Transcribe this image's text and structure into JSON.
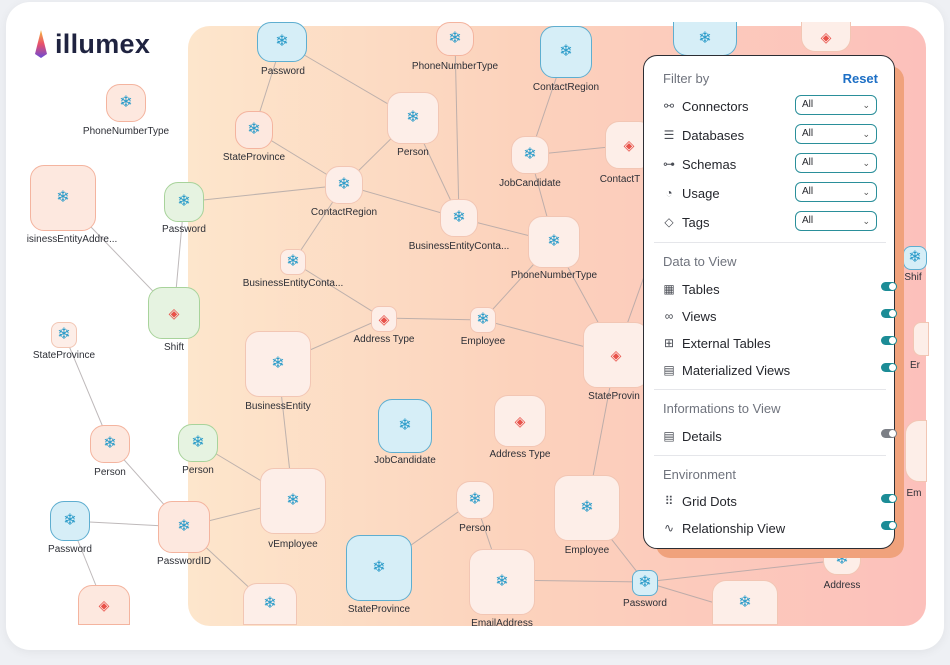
{
  "brand": {
    "name": "illumex"
  },
  "graph": {
    "nodes": [
      {
        "label": "Password"
      },
      {
        "label": "PhoneNumberType"
      },
      {
        "label": "ContactRegion"
      },
      {
        "label": "PhoneNumberType"
      },
      {
        "label": "StateProvince"
      },
      {
        "label": "Person"
      },
      {
        "label": "JobCandidate"
      },
      {
        "label": "ContactT"
      },
      {
        "label": "isinessEntityAddre..."
      },
      {
        "label": "Password"
      },
      {
        "label": "ContactRegion"
      },
      {
        "label": "BusinessEntityConta..."
      },
      {
        "label": "PhoneNumberType"
      },
      {
        "label": "BusinessEntityConta..."
      },
      {
        "label": "Shift"
      },
      {
        "label": "StateProvince"
      },
      {
        "label": "Address Type"
      },
      {
        "label": "Employee"
      },
      {
        "label": "BusinessEntity"
      },
      {
        "label": "StateProvin"
      },
      {
        "label": "JobCandidate"
      },
      {
        "label": "Address Type"
      },
      {
        "label": "Person"
      },
      {
        "label": "Person"
      },
      {
        "label": "vEmployee"
      },
      {
        "label": "Person"
      },
      {
        "label": "Employee"
      },
      {
        "label": "Password"
      },
      {
        "label": "PasswordID"
      },
      {
        "label": "StateProvince"
      },
      {
        "label": "EmailAddress"
      },
      {
        "label": "Password"
      },
      {
        "label": "Address"
      },
      {
        "label": "Shif"
      },
      {
        "label": "Er"
      },
      {
        "label": "Em"
      }
    ]
  },
  "filter": {
    "title": "Filter by",
    "reset": "Reset",
    "rows": [
      {
        "label": "Connectors",
        "icon": "connectors-icon",
        "value": "All"
      },
      {
        "label": "Databases",
        "icon": "database-icon",
        "value": "All"
      },
      {
        "label": "Schemas",
        "icon": "schema-icon",
        "value": "All"
      },
      {
        "label": "Usage",
        "icon": "gauge-icon",
        "value": "All"
      },
      {
        "label": "Tags",
        "icon": "tag-icon",
        "value": "All"
      }
    ]
  },
  "data_to_view": {
    "title": "Data to View",
    "items": [
      {
        "label": "Tables",
        "icon": "table-icon",
        "on": true
      },
      {
        "label": "Views",
        "icon": "glasses-icon",
        "on": true
      },
      {
        "label": "External Tables",
        "icon": "external-table-icon",
        "on": true
      },
      {
        "label": "Materialized Views",
        "icon": "materialized-view-icon",
        "on": true
      }
    ]
  },
  "informations": {
    "title": "Informations to View",
    "items": [
      {
        "label": "Details",
        "icon": "details-icon",
        "on": false
      }
    ]
  },
  "environment": {
    "title": "Environment",
    "items": [
      {
        "label": "Grid Dots",
        "icon": "grid-dots-icon",
        "on": true
      },
      {
        "label": "Relationship View",
        "icon": "relationship-icon",
        "on": true
      }
    ]
  },
  "colors": {
    "accent": "#1c8c96",
    "reset": "#1d6fc5",
    "snowflake": "#2a9bc9",
    "database": "#e8524a"
  }
}
